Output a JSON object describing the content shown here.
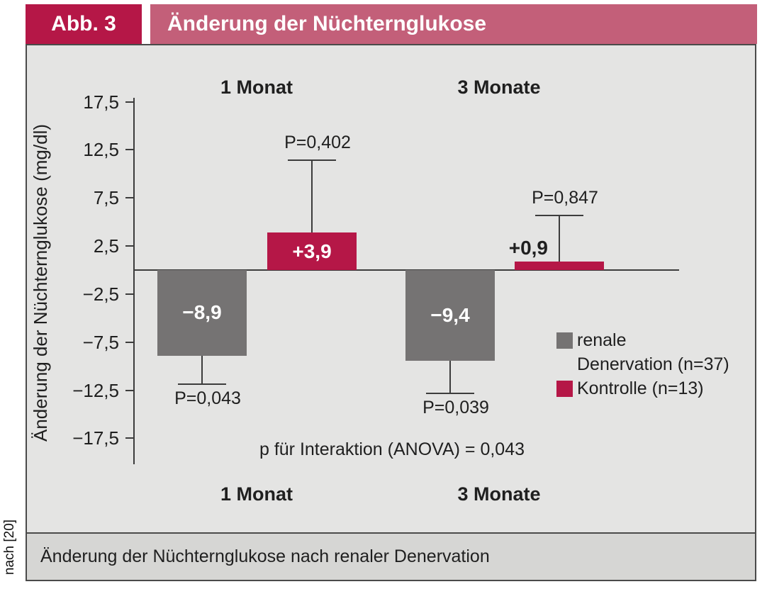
{
  "figure_label": "Abb. 3",
  "figure_title": "Änderung der Nüchternglukose",
  "source_note": "nach [20]",
  "caption": "Änderung der Nüchternglukose nach renaler Denervation",
  "colors": {
    "accent_crimson": "#b51747",
    "header_title_bg": "#c35f79",
    "bar_gray": "#757373",
    "chart_bg": "#e4e4e3",
    "caption_bg": "#d6d6d4",
    "axis": "#3c3c3c",
    "text": "#1f1f1f"
  },
  "legend": {
    "rows": [
      {
        "text": "renale"
      },
      {
        "text": "Denervation (n=37)"
      },
      {
        "text": "Kontrolle (n=13)"
      }
    ]
  },
  "chart_data": {
    "type": "bar",
    "title": "Änderung der Nüchternglukose",
    "ylabel": "Änderung der Nüchternglukose (mg/dl)",
    "xlabel": "",
    "unit": "mg/dl",
    "ylim": [
      -17.5,
      17.5
    ],
    "yticks": [
      17.5,
      12.5,
      7.5,
      2.5,
      -2.5,
      -7.5,
      -12.5,
      -17.5
    ],
    "ytick_labels": [
      "17,5",
      "12,5",
      "7,5",
      "2,5",
      "−2,5",
      "−7,5",
      "−12,5",
      "−17,5"
    ],
    "grid": false,
    "legend_position": "right-center",
    "annotation": "p für Interaktion (ANOVA) = 0,043",
    "categories": [
      "1 Monat",
      "3 Monate"
    ],
    "series": [
      {
        "name": "renale Denervation (n=37)",
        "color": "#757373",
        "values": [
          -8.9,
          -9.4
        ],
        "value_labels": [
          "−8,9",
          "−9,4"
        ],
        "p_labels": [
          "P=0,043",
          "P=0,039"
        ],
        "error_whisker_ends": [
          -11.9,
          -12.8
        ]
      },
      {
        "name": "Kontrolle (n=13)",
        "color": "#b51747",
        "values": [
          3.9,
          0.9
        ],
        "value_labels": [
          "+3,9",
          "+0,9"
        ],
        "p_labels": [
          "P=0,402",
          "P=0,847"
        ],
        "error_whisker_ends": [
          11.4,
          5.7
        ]
      }
    ]
  }
}
